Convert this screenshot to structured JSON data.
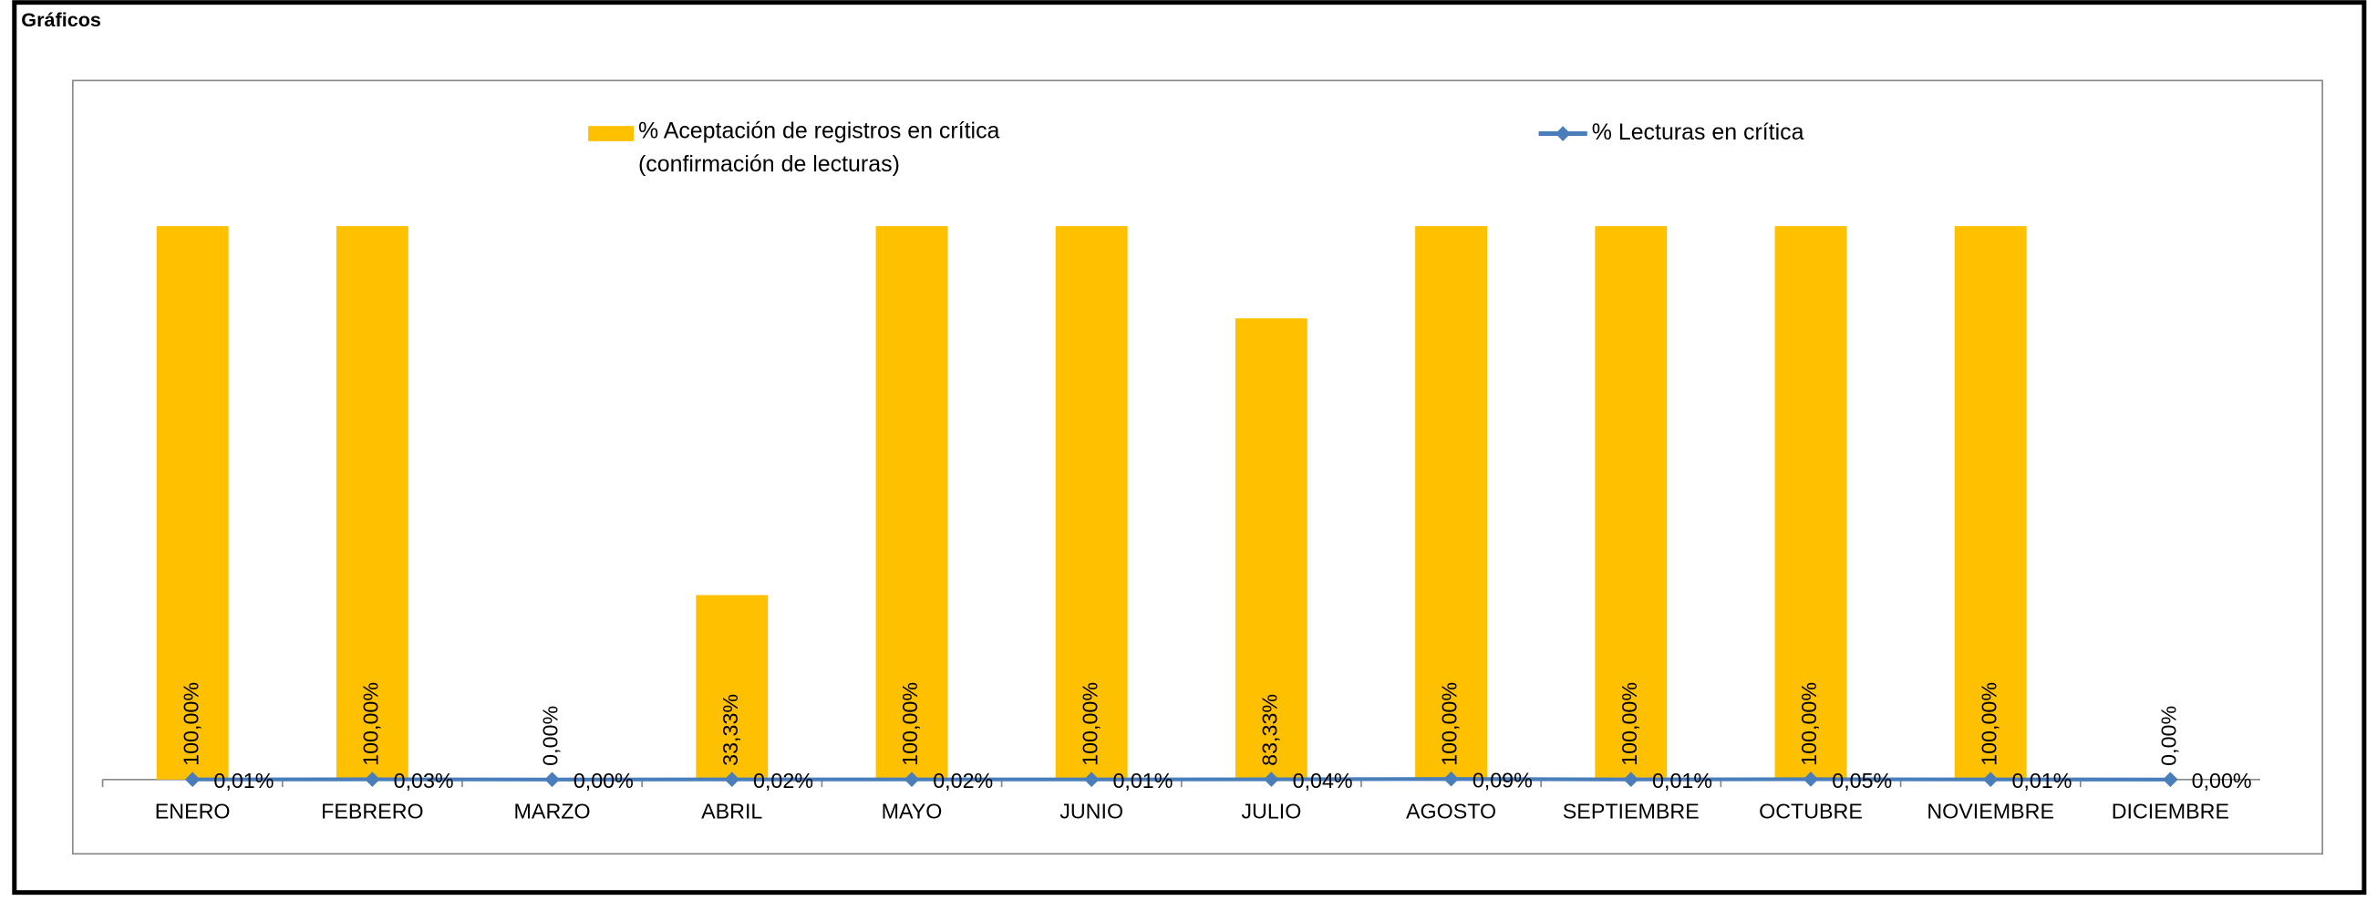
{
  "page_title": "Gráficos",
  "chart_data": {
    "type": "bar_line",
    "categories": [
      "ENERO",
      "FEBRERO",
      "MARZO",
      "ABRIL",
      "MAYO",
      "JUNIO",
      "JULIO",
      "AGOSTO",
      "SEPTIEMBRE",
      "OCTUBRE",
      "NOVIEMBRE",
      "DICIEMBRE"
    ],
    "series": [
      {
        "name": "% Aceptación de registros en crítica (confirmación de lecturas)",
        "type": "bar",
        "color": "#ffc000",
        "values": [
          100,
          100,
          0,
          33.33,
          100,
          100,
          83.33,
          100,
          100,
          100,
          100,
          0
        ],
        "value_labels": [
          "100,00%",
          "100,00%",
          "0,00%",
          "33,33%",
          "100,00%",
          "100,00%",
          "83,33%",
          "100,00%",
          "100,00%",
          "100,00%",
          "100,00%",
          "0,00%"
        ]
      },
      {
        "name": "% Lecturas en crítica",
        "type": "line",
        "color": "#4a7ebb",
        "values": [
          0.01,
          0.03,
          0,
          0.02,
          0.02,
          0.01,
          0.04,
          0.09,
          0.01,
          0.05,
          0.01,
          0
        ],
        "value_labels": [
          "0,01%",
          "0,03%",
          "0,00%",
          "0,02%",
          "0,02%",
          "0,01%",
          "0,04%",
          "0,09%",
          "0,01%",
          "0,05%",
          "0,01%",
          "0,00%"
        ]
      }
    ],
    "ylim": [
      0,
      100
    ]
  }
}
